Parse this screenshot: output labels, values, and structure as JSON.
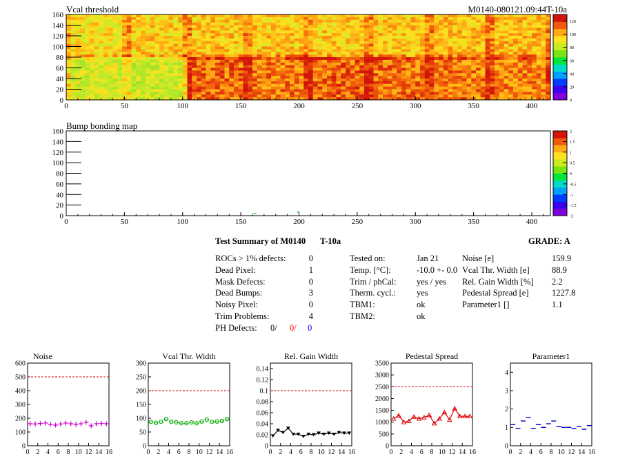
{
  "header": {
    "vcal_title": "Vcal threshold",
    "module_id": "M0140-080121.09:44T-10a",
    "bump_title": "Bump bonding map"
  },
  "maps": {
    "x_ticks": [
      "0",
      "50",
      "100",
      "150",
      "200",
      "250",
      "300",
      "350",
      "400"
    ],
    "y_ticks": [
      "0",
      "20",
      "40",
      "60",
      "80",
      "100",
      "120",
      "140",
      "160"
    ],
    "vcal_colorbar_ticks": [
      "0",
      "20",
      "40",
      "60",
      "80",
      "100",
      "120"
    ],
    "bump_colorbar_ticks": [
      "-2",
      "-1.5",
      "-1",
      "-0.5",
      "0",
      "0.5",
      "1",
      "1.5",
      "2"
    ]
  },
  "summary": {
    "title": "Test Summary of M0140",
    "temp_tag": "T-10a",
    "grade": "GRADE:  A",
    "left": [
      {
        "label": "ROCs > 1% defects:",
        "value": "0"
      },
      {
        "label": "Dead Pixel:",
        "value": "1"
      },
      {
        "label": "Mask Defects:",
        "value": "0"
      },
      {
        "label": "Dead Bumps:",
        "value": "3"
      },
      {
        "label": "Noisy Pixel:",
        "value": "0"
      },
      {
        "label": "Trim Problems:",
        "value": "4"
      }
    ],
    "ph_label": "PH Defects:",
    "ph_values": [
      "0/",
      "0/",
      "0"
    ],
    "ph_colors": [
      "#000000",
      "#ff0000",
      "#0000ff"
    ],
    "middle": [
      {
        "label": "Tested on:",
        "value": "Jan 21"
      },
      {
        "label": "Temp. [°C]:",
        "value": "-10.0 +- 0.0"
      },
      {
        "label": "Trim / phCal:",
        "value": "yes / yes"
      },
      {
        "label": "Therm. cycl.:",
        "value": "yes"
      },
      {
        "label": "TBM1:",
        "value": "ok"
      },
      {
        "label": "TBM2:",
        "value": "ok"
      }
    ],
    "right": [
      {
        "label": "Noise [e]",
        "value": "159.9"
      },
      {
        "label": "Vcal Thr. Width [e]",
        "value": "88.9"
      },
      {
        "label": "Rel. Gain Width [%]",
        "value": "2.2"
      },
      {
        "label": "Pedestal Spread [e]",
        "value": "1227.8"
      },
      {
        "label": "Parameter1 []",
        "value": "1.1"
      }
    ]
  },
  "chart_data": [
    {
      "type": "heatmap",
      "title": "Vcal threshold",
      "xlim": [
        0,
        416
      ],
      "ylim": [
        0,
        160
      ],
      "z_range": [
        0,
        130
      ],
      "roc_mean_levels_top": [
        100,
        103,
        105,
        104,
        103,
        104,
        105,
        106
      ],
      "roc_mean_levels_bottom": [
        92,
        90,
        118,
        116,
        119,
        117,
        116,
        114
      ],
      "color": "#ff8c00"
    },
    {
      "type": "heatmap",
      "title": "Bump bonding map",
      "xlim": [
        0,
        416
      ],
      "ylim": [
        0,
        160
      ],
      "z_range": [
        -2,
        2
      ],
      "points": [
        {
          "x": 161,
          "y": 5
        },
        {
          "x": 198,
          "y": 8
        }
      ],
      "color": "#22cc22"
    },
    {
      "type": "scatter",
      "title": "Noise",
      "x": [
        0,
        1,
        2,
        3,
        4,
        5,
        6,
        7,
        8,
        9,
        10,
        11,
        12,
        13,
        14,
        15
      ],
      "values": [
        160,
        158,
        162,
        165,
        155,
        150,
        158,
        165,
        160,
        155,
        160,
        170,
        145,
        160,
        162,
        160
      ],
      "ylim": [
        0,
        600
      ],
      "xlim": [
        0,
        16
      ],
      "yticks": [
        "0",
        "100",
        "200",
        "300",
        "400",
        "500",
        "600"
      ],
      "xticks": [
        "0",
        "2",
        "4",
        "6",
        "8",
        "10",
        "12",
        "14",
        "16"
      ],
      "threshold": 500,
      "color": "#cc00cc",
      "marker": "cross"
    },
    {
      "type": "scatter",
      "title": "Vcal Thr. Width",
      "x": [
        0,
        1,
        2,
        3,
        4,
        5,
        6,
        7,
        8,
        9,
        10,
        11,
        12,
        13,
        14,
        15
      ],
      "values": [
        87,
        83,
        87,
        97,
        87,
        85,
        82,
        82,
        85,
        82,
        88,
        95,
        87,
        88,
        90,
        97
      ],
      "ylim": [
        0,
        300
      ],
      "xlim": [
        0,
        16
      ],
      "yticks": [
        "0",
        "50",
        "100",
        "150",
        "200",
        "250",
        "300"
      ],
      "xticks": [
        "0",
        "2",
        "4",
        "6",
        "8",
        "10",
        "12",
        "14",
        "16"
      ],
      "threshold": 200,
      "color": "#00aa00",
      "marker": "circle"
    },
    {
      "type": "line",
      "title": "Rel. Gain Width",
      "x": [
        0,
        1,
        2,
        3,
        4,
        5,
        6,
        7,
        8,
        9,
        10,
        11,
        12,
        13,
        14,
        15
      ],
      "values": [
        0.018,
        0.028,
        0.024,
        0.032,
        0.021,
        0.021,
        0.017,
        0.021,
        0.02,
        0.023,
        0.021,
        0.023,
        0.021,
        0.024,
        0.023,
        0.023
      ],
      "ylim": [
        0,
        0.15
      ],
      "xlim": [
        0,
        16
      ],
      "yticks": [
        "0",
        "0.02",
        "0.04",
        "0.06",
        "0.08",
        "0.1",
        "0.12",
        "0.14"
      ],
      "xticks": [
        "0",
        "2",
        "4",
        "6",
        "8",
        "10",
        "12",
        "14",
        "16"
      ],
      "threshold": 0.1,
      "color": "#000000",
      "marker": "triangle-down"
    },
    {
      "type": "line",
      "title": "Pedestal Spread",
      "x": [
        0,
        1,
        2,
        3,
        4,
        5,
        6,
        7,
        8,
        9,
        10,
        11,
        12,
        13,
        14,
        15
      ],
      "values": [
        1150,
        1280,
        1000,
        1050,
        1230,
        1150,
        1200,
        1300,
        950,
        1150,
        1420,
        1100,
        1580,
        1250,
        1250,
        1250
      ],
      "ylim": [
        0,
        3500
      ],
      "xlim": [
        0,
        16
      ],
      "yticks": [
        "0",
        "500",
        "1000",
        "1500",
        "2000",
        "2500",
        "3000",
        "3500"
      ],
      "xticks": [
        "0",
        "2",
        "4",
        "6",
        "8",
        "10",
        "12",
        "14",
        "16"
      ],
      "threshold": 2500,
      "color": "#dd0000",
      "marker": "triangle-up"
    },
    {
      "type": "scatter",
      "title": "Parameter1",
      "x": [
        0,
        1,
        2,
        3,
        4,
        5,
        6,
        7,
        8,
        9,
        10,
        11,
        12,
        13,
        14,
        15
      ],
      "values": [
        1.15,
        0.95,
        1.35,
        1.55,
        0.95,
        1.15,
        1.0,
        1.2,
        1.35,
        1.05,
        1.0,
        1.0,
        0.95,
        1.05,
        0.9,
        1.1
      ],
      "ylim": [
        0,
        4.5
      ],
      "xlim": [
        0,
        16
      ],
      "yticks": [
        "0",
        "1",
        "2",
        "3",
        "4"
      ],
      "xticks": [
        "0",
        "2",
        "4",
        "6",
        "8",
        "10",
        "12",
        "14",
        "16"
      ],
      "threshold": null,
      "color": "#0000cc",
      "marker": "dash"
    }
  ]
}
